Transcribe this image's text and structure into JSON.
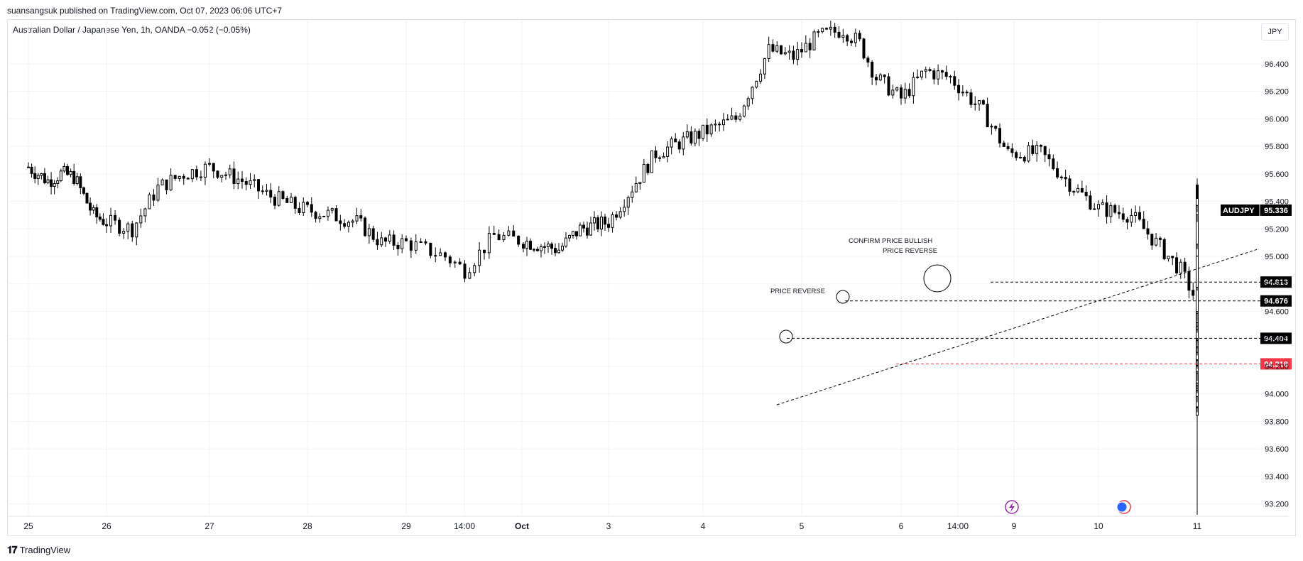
{
  "header": {
    "publisher_text": "suansangsuk published on TradingView.com, Oct 07, 2023 06:06 UTC+7",
    "symbol_text": "Australian Dollar / Japanese Yen, 1h, OANDA  −0.052 (−0.05%)",
    "currency": "JPY"
  },
  "footer": {
    "logo_icon": "tradingview-logo-icon",
    "logo_text": "TradingView"
  },
  "colors": {
    "candle_body": "#ffffff",
    "candle_stroke": "#000000",
    "grid": "#f0f3fa",
    "level_line": "#000000",
    "support_line": "#f23645",
    "trend_line": "#000000",
    "event_icon_purple": "#9c27b0",
    "event_icon_flag": "#2962ff"
  },
  "chart_data": {
    "type": "candlestick",
    "symbol": "AUDJPY",
    "timeframe": "1h",
    "last_price": 95.336,
    "ylim": [
      93.12,
      96.72
    ],
    "y_ticks": [
      "96.400",
      "96.200",
      "96.000",
      "95.800",
      "95.600",
      "95.400",
      "95.200",
      "95.000",
      "94.800",
      "94.600",
      "94.400",
      "94.200",
      "94.000",
      "93.800",
      "93.600",
      "93.400",
      "93.200"
    ],
    "x_ticks": [
      "25",
      "26",
      "27",
      "28",
      "29",
      "14:00",
      "Oct",
      "3",
      "4",
      "5",
      "6",
      "14:00",
      "9",
      "10",
      "11"
    ],
    "horizontal_levels": [
      {
        "price": 94.813,
        "label": "94.813",
        "style": "dashed",
        "color": "black"
      },
      {
        "price": 94.676,
        "label": "94.676",
        "style": "dashed",
        "color": "black"
      },
      {
        "price": 94.404,
        "label": "94.404",
        "style": "dashed",
        "color": "black"
      },
      {
        "price": 94.218,
        "label": "94.218",
        "style": "dashed",
        "color": "red"
      }
    ],
    "trend_line": {
      "from": {
        "date": "Oct 5 01:00",
        "price": 93.92
      },
      "to": {
        "date": "Oct 10 20:00",
        "price": 95.05
      }
    },
    "annotations": [
      {
        "text": "PRICE REVERSE",
        "near_price": 94.72
      },
      {
        "text": "CONFIRM PRICE BULLISH",
        "near_price": 95.05
      },
      {
        "text": "PRICE REVERSE",
        "near_price": 94.98
      }
    ],
    "circles": [
      {
        "date": "Oct 4 20:00",
        "price": 94.42
      },
      {
        "date": "Oct 5 12:00",
        "price": 94.69
      },
      {
        "date": "Oct 6 12:00",
        "price": 94.82
      }
    ],
    "waypoints": [
      [
        0,
        95.65
      ],
      [
        6,
        95.55
      ],
      [
        10,
        95.6
      ],
      [
        14,
        95.58
      ],
      [
        20,
        95.3
      ],
      [
        24,
        95.25
      ],
      [
        30,
        95.2
      ],
      [
        36,
        95.5
      ],
      [
        42,
        95.6
      ],
      [
        48,
        95.65
      ],
      [
        56,
        95.55
      ],
      [
        62,
        95.45
      ],
      [
        70,
        95.35
      ],
      [
        78,
        95.3
      ],
      [
        84,
        95.25
      ],
      [
        90,
        95.1
      ],
      [
        96,
        95.1
      ],
      [
        104,
        95.0
      ],
      [
        108,
        94.9
      ],
      [
        114,
        95.15
      ],
      [
        122,
        95.1
      ],
      [
        130,
        95.05
      ],
      [
        136,
        95.2
      ],
      [
        144,
        95.25
      ],
      [
        150,
        95.5
      ],
      [
        156,
        95.75
      ],
      [
        164,
        95.85
      ],
      [
        172,
        95.95
      ],
      [
        176,
        96.0
      ],
      [
        184,
        96.5
      ],
      [
        190,
        96.45
      ],
      [
        196,
        96.6
      ],
      [
        202,
        96.65
      ],
      [
        206,
        96.55
      ],
      [
        210,
        96.3
      ],
      [
        216,
        96.15
      ],
      [
        222,
        96.35
      ],
      [
        228,
        96.3
      ],
      [
        236,
        96.05
      ],
      [
        242,
        95.75
      ],
      [
        250,
        95.75
      ],
      [
        258,
        95.5
      ],
      [
        264,
        95.35
      ],
      [
        272,
        95.3
      ],
      [
        278,
        95.1
      ],
      [
        284,
        94.9
      ],
      [
        290,
        94.55
      ],
      [
        296,
        94.5
      ],
      [
        302,
        94.6
      ],
      [
        304,
        93.95
      ],
      [
        310,
        93.9
      ],
      [
        316,
        93.85
      ],
      [
        322,
        94.05
      ],
      [
        328,
        94.15
      ],
      [
        334,
        94.3
      ],
      [
        340,
        94.3
      ],
      [
        346,
        94.1
      ],
      [
        352,
        94.3
      ],
      [
        356,
        94.0
      ],
      [
        362,
        94.3
      ],
      [
        368,
        94.25
      ],
      [
        374,
        94.4
      ],
      [
        378,
        94.65
      ],
      [
        382,
        94.6
      ],
      [
        388,
        94.45
      ],
      [
        394,
        94.4
      ],
      [
        398,
        94.35
      ],
      [
        404,
        94.3
      ],
      [
        410,
        94.45
      ],
      [
        416,
        94.55
      ],
      [
        422,
        94.6
      ],
      [
        426,
        94.7
      ],
      [
        432,
        94.75
      ],
      [
        438,
        94.75
      ],
      [
        444,
        94.6
      ],
      [
        450,
        94.75
      ],
      [
        456,
        94.78
      ],
      [
        460,
        94.55
      ],
      [
        464,
        94.6
      ],
      [
        468,
        95.3
      ],
      [
        472,
        95.4
      ],
      [
        476,
        95.5
      ],
      [
        480,
        95.35
      ]
    ]
  }
}
